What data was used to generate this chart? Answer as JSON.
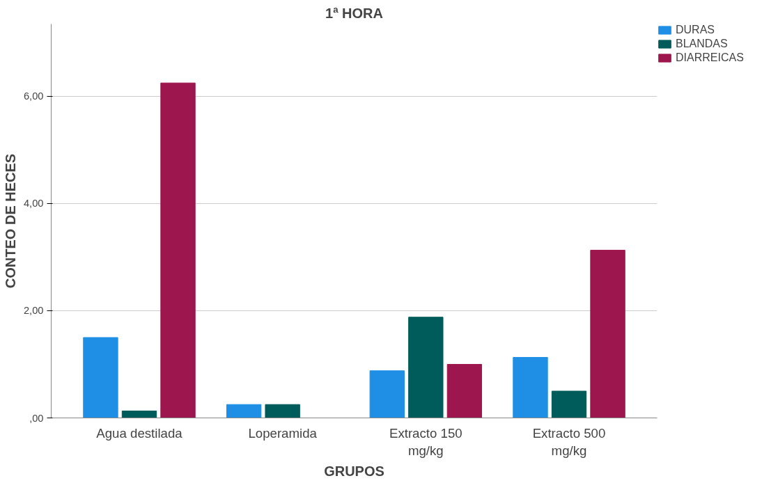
{
  "chart_data": {
    "type": "bar",
    "title": "1ª HORA",
    "xlabel": "GRUPOS",
    "ylabel": "CONTEO DE HECES",
    "categories": [
      "Agua destilada",
      "Loperamida",
      "Extracto 150 mg/kg",
      "Extracto 500 mg/kg"
    ],
    "series": [
      {
        "name": "DURAS",
        "color": "#1f8fe6",
        "values": [
          1.5,
          0.25,
          0.88,
          1.13
        ]
      },
      {
        "name": "BLANDAS",
        "color": "#005c5a",
        "values": [
          0.13,
          0.25,
          1.88,
          0.5
        ]
      },
      {
        "name": "DIARREICAS",
        "color": "#9e164e",
        "values": [
          6.25,
          0,
          1.0,
          3.13
        ]
      }
    ],
    "ylim": [
      0,
      7.35
    ],
    "yticks": [
      {
        "value": 0,
        "label": ",00"
      },
      {
        "value": 2,
        "label": "2,00"
      },
      {
        "value": 4,
        "label": "4,00"
      },
      {
        "value": 6,
        "label": "6,00"
      }
    ],
    "grid": "y",
    "legend": "top right"
  }
}
